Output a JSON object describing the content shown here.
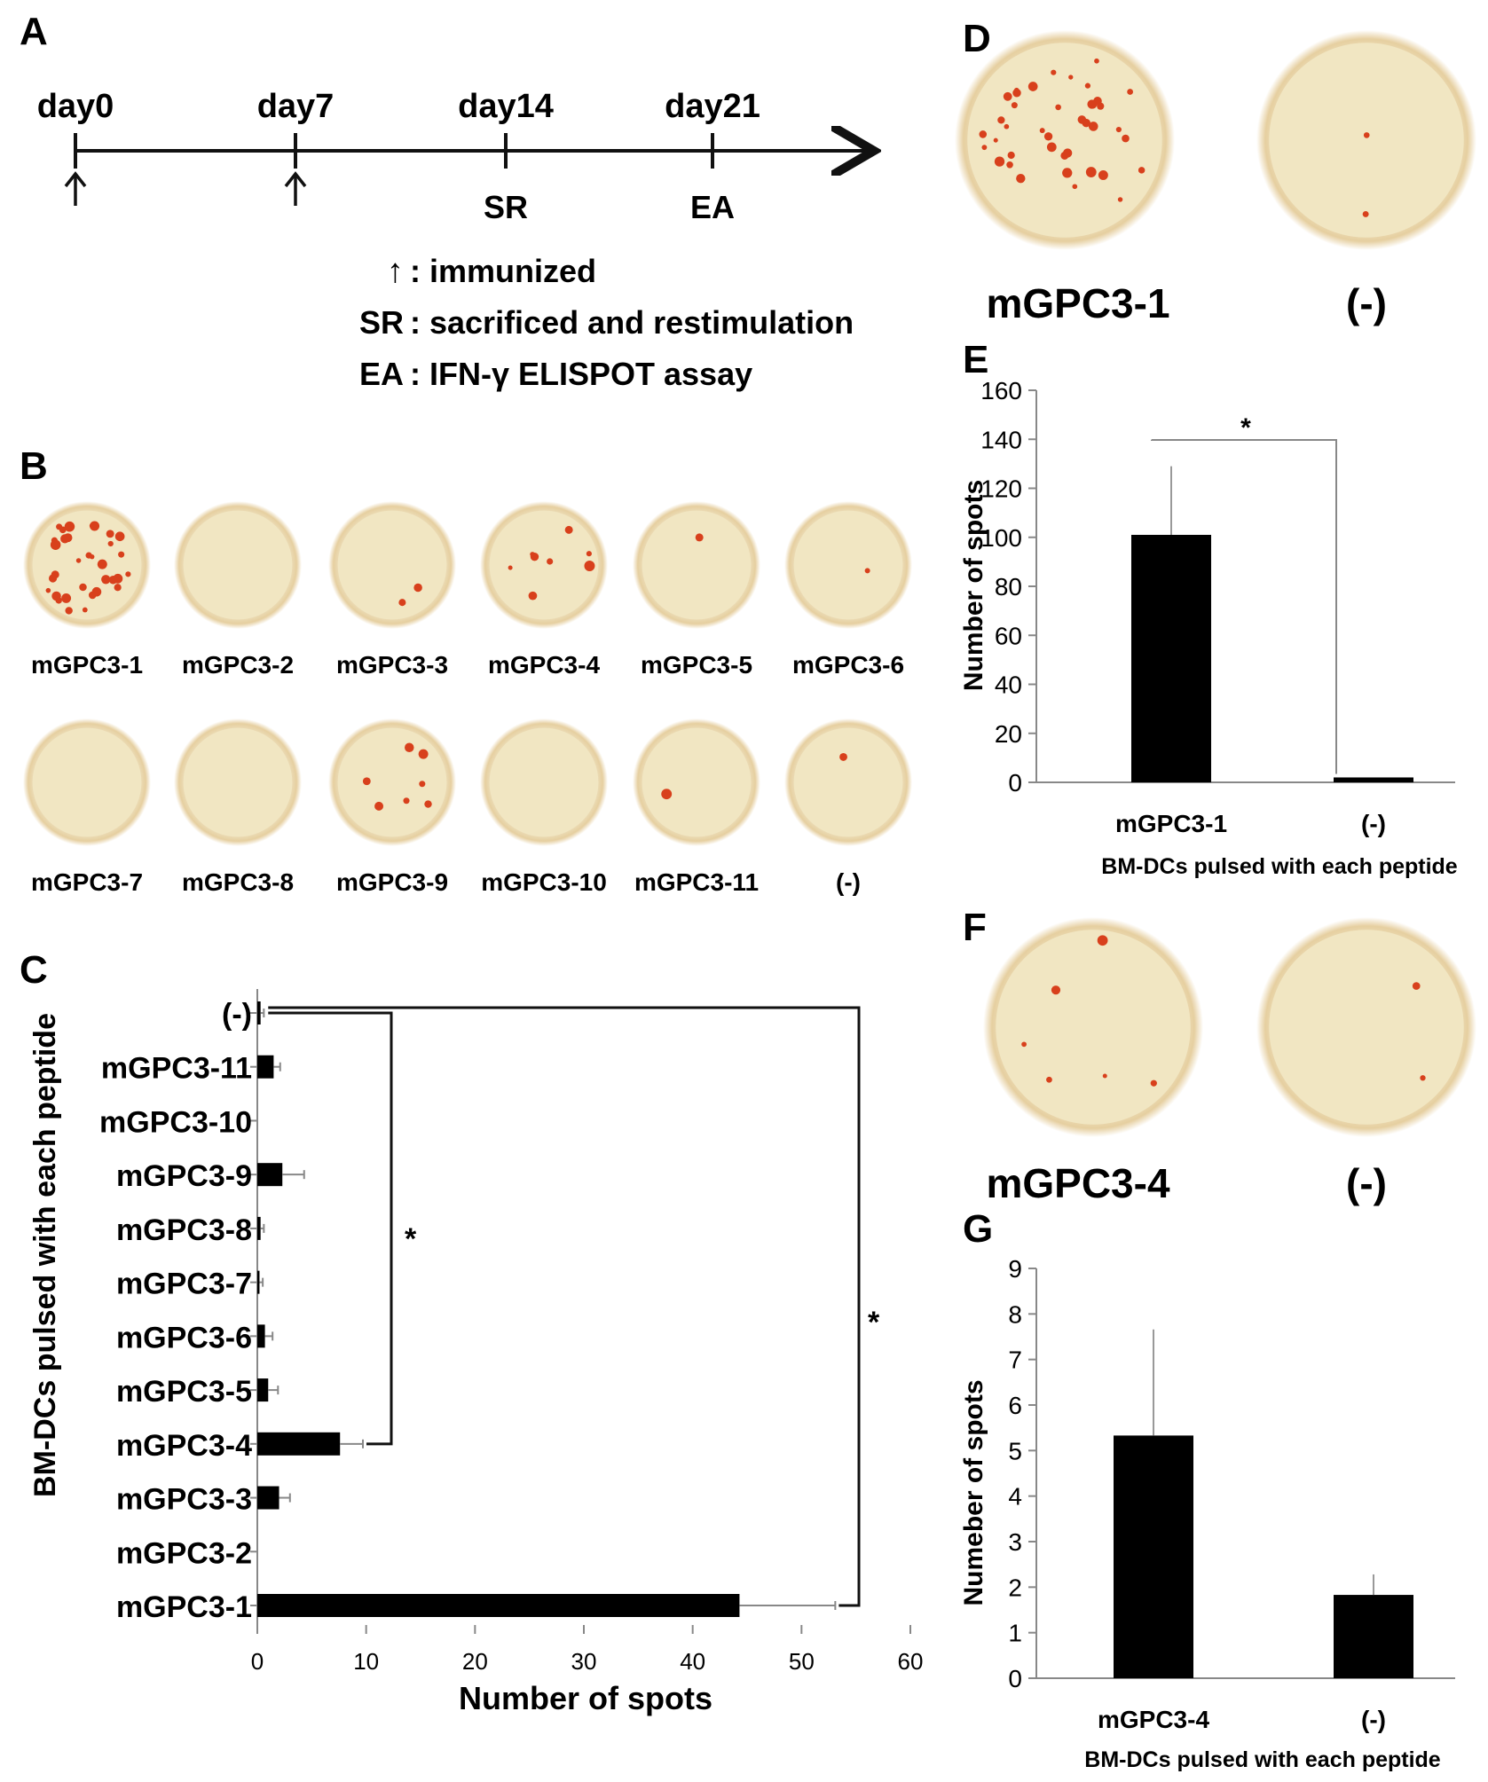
{
  "panel_letters": {
    "a": "A",
    "b": "B",
    "c": "C",
    "d": "D",
    "e": "E",
    "f": "F",
    "g": "G"
  },
  "timeline": {
    "days": [
      "day0",
      "day7",
      "day14",
      "day21"
    ],
    "below": {
      "sr": "SR",
      "ea": "EA"
    },
    "legend": [
      {
        "symbol": "↑",
        "text": ": immunized"
      },
      {
        "symbol": "SR",
        "text": ": sacrificed and restimulation"
      },
      {
        "symbol": "EA",
        "text": ": IFN-γ ELISPOT assay"
      }
    ]
  },
  "wells_b": [
    {
      "label": "mGPC3-1",
      "spots": 34
    },
    {
      "label": "mGPC3-2",
      "spots": 0
    },
    {
      "label": "mGPC3-3",
      "spots": 2
    },
    {
      "label": "mGPC3-4",
      "spots": 8
    },
    {
      "label": "mGPC3-5",
      "spots": 1
    },
    {
      "label": "mGPC3-6",
      "spots": 1
    },
    {
      "label": "mGPC3-7",
      "spots": 0
    },
    {
      "label": "mGPC3-8",
      "spots": 0
    },
    {
      "label": "mGPC3-9",
      "spots": 7
    },
    {
      "label": "mGPC3-10",
      "spots": 0
    },
    {
      "label": "mGPC3-11",
      "spots": 1
    },
    {
      "label": "(-)",
      "spots": 1
    }
  ],
  "wells_d": [
    {
      "label": "mGPC3-1",
      "spots": 40
    },
    {
      "label": "(-)",
      "spots": 2
    }
  ],
  "wells_f": [
    {
      "label": "mGPC3-4",
      "spots": 6
    },
    {
      "label": "(-)",
      "spots": 2
    }
  ],
  "colors": {
    "bar": "#000000",
    "spot": "#d8401c",
    "well": "#f1e6c2",
    "well_edge": "#e7d3a8"
  },
  "chart_data": [
    {
      "panel": "C",
      "type": "bar",
      "orientation": "horizontal",
      "categories": [
        "(-)",
        "mGPC3-11",
        "mGPC3-10",
        "mGPC3-9",
        "mGPC3-8",
        "mGPC3-7",
        "mGPC3-6",
        "mGPC3-5",
        "mGPC3-4",
        "mGPC3-3",
        "mGPC3-2",
        "mGPC3-1"
      ],
      "values": [
        0.3,
        1.5,
        0,
        2.3,
        0.3,
        0.2,
        0.7,
        1.0,
        7.6,
        2.0,
        0,
        44.3
      ],
      "errors": [
        0.3,
        0.6,
        0,
        2.0,
        0.3,
        0.3,
        0.7,
        0.9,
        2.1,
        1.0,
        0,
        8.8
      ],
      "xlabel": "Number of spots",
      "ylabel": "BM-DCs pulsed with each peptide",
      "xlim": [
        0,
        60
      ],
      "xticks": [
        0,
        10,
        20,
        30,
        40,
        50,
        60
      ],
      "significance": [
        "*",
        "*"
      ]
    },
    {
      "panel": "E",
      "type": "bar",
      "categories": [
        "mGPC3-1",
        "(-)"
      ],
      "values": [
        101,
        2
      ],
      "errors": [
        28,
        0
      ],
      "ylabel": "Number of spots",
      "xlabel": "BM-DCs pulsed with each peptide",
      "ylim": [
        0,
        160
      ],
      "yticks": [
        0,
        20,
        40,
        60,
        80,
        100,
        120,
        140,
        160
      ],
      "significance": "*"
    },
    {
      "panel": "G",
      "type": "bar",
      "categories": [
        "mGPC3-4",
        "(-)"
      ],
      "values": [
        5.33,
        1.83
      ],
      "errors": [
        2.33,
        0.45
      ],
      "ylabel": "Numeber of spots",
      "xlabel": "BM-DCs pulsed with each peptide",
      "ylim": [
        0,
        9
      ],
      "yticks": [
        0,
        1,
        2,
        3,
        4,
        5,
        6,
        7,
        8,
        9
      ]
    }
  ]
}
